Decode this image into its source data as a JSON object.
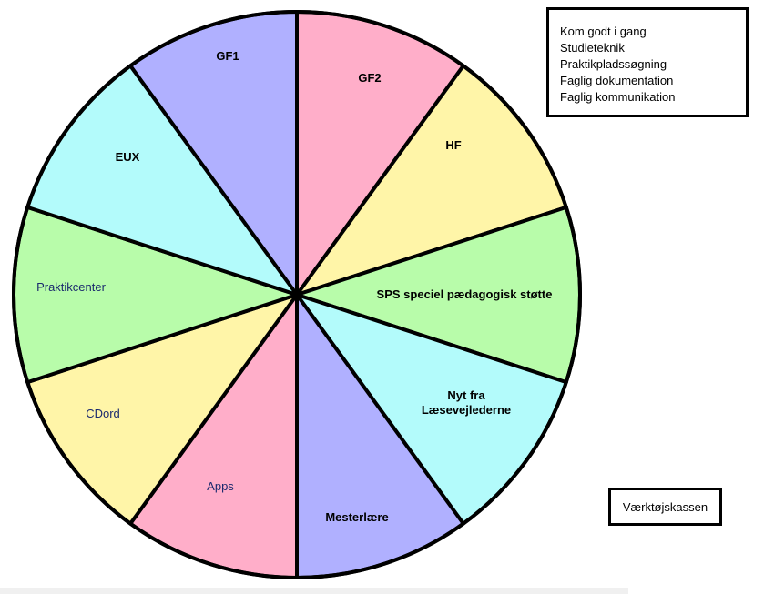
{
  "wheel": {
    "segments": [
      {
        "label": [
          "GF1"
        ],
        "color": "#b0b0ff",
        "bold": true
      },
      {
        "label": [
          "GF2"
        ],
        "color": "#ffaec9",
        "bold": true
      },
      {
        "label": [
          "HF"
        ],
        "color": "#fff5a8",
        "bold": true
      },
      {
        "label": [
          "SPS speciel pædagogisk støtte"
        ],
        "color": "#b8fcaa",
        "bold": true
      },
      {
        "label": [
          "Nyt fra",
          "Læsevejlederne"
        ],
        "color": "#b3fbfb",
        "bold": true
      },
      {
        "label": [
          "Mesterlære"
        ],
        "color": "#b0b0ff",
        "bold": true
      },
      {
        "label": [
          "Apps"
        ],
        "color": "#ffaec9",
        "bold": false
      },
      {
        "label": [
          "CDord"
        ],
        "color": "#fff5a8",
        "bold": false
      },
      {
        "label": [
          "Praktikcenter"
        ],
        "color": "#b8fcaa",
        "bold": false
      },
      {
        "label": [
          "EUX"
        ],
        "color": "#b3fbfb",
        "bold": true
      }
    ]
  },
  "info_box": {
    "items": [
      "Kom godt i gang",
      "Studieteknik",
      "Praktikpladssøgning",
      "Faglig dokumentation",
      "Faglig kommunikation"
    ]
  },
  "tool_box": {
    "label": "Værktøjskassen"
  }
}
